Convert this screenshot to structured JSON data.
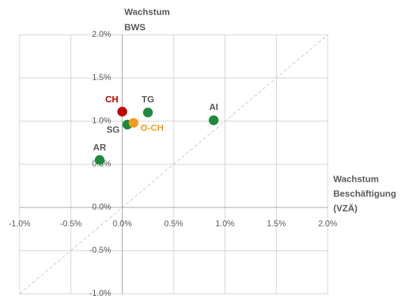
{
  "chart_data": {
    "type": "scatter",
    "y_label": [
      "Wachstum",
      "BWS"
    ],
    "x_label": [
      "Wachstum",
      "Beschäftigung",
      "(VZÄ)"
    ],
    "xlim": [
      -1.0,
      2.0
    ],
    "ylim": [
      -1.0,
      2.0
    ],
    "xticks": [
      {
        "value": -1.0,
        "label": "-1.0%"
      },
      {
        "value": -0.5,
        "label": "-0.5%"
      },
      {
        "value": 0.0,
        "label": "0.0%"
      },
      {
        "value": 0.5,
        "label": "0.5%"
      },
      {
        "value": 1.0,
        "label": "1.0%"
      },
      {
        "value": 1.5,
        "label": "1.5%"
      },
      {
        "value": 2.0,
        "label": "2.0%"
      }
    ],
    "yticks": [
      {
        "value": -1.0,
        "label": "-1.0%"
      },
      {
        "value": -0.5,
        "label": "-0.5%"
      },
      {
        "value": 0.0,
        "label": "0.0%"
      },
      {
        "value": 0.5,
        "label": "0.5%"
      },
      {
        "value": 1.0,
        "label": "1.0%"
      },
      {
        "value": 1.5,
        "label": "1.5%"
      },
      {
        "value": 2.0,
        "label": "2.0%"
      }
    ],
    "grid": true,
    "diagonal": true,
    "points": [
      {
        "label": "CH",
        "x": 0.0,
        "y": 1.11,
        "color": "#c00000"
      },
      {
        "label": "TG",
        "x": 0.25,
        "y": 1.1,
        "color": "#1e8a3c"
      },
      {
        "label": "AI",
        "x": 0.89,
        "y": 1.01,
        "color": "#1e8a3c"
      },
      {
        "label": "SG",
        "x": 0.05,
        "y": 0.96,
        "color": "#1e8a3c"
      },
      {
        "label": "O-CH",
        "x": 0.11,
        "y": 0.98,
        "color": "#f39c1e"
      },
      {
        "label": "AR",
        "x": -0.22,
        "y": 0.55,
        "color": "#1e8a3c"
      }
    ]
  }
}
